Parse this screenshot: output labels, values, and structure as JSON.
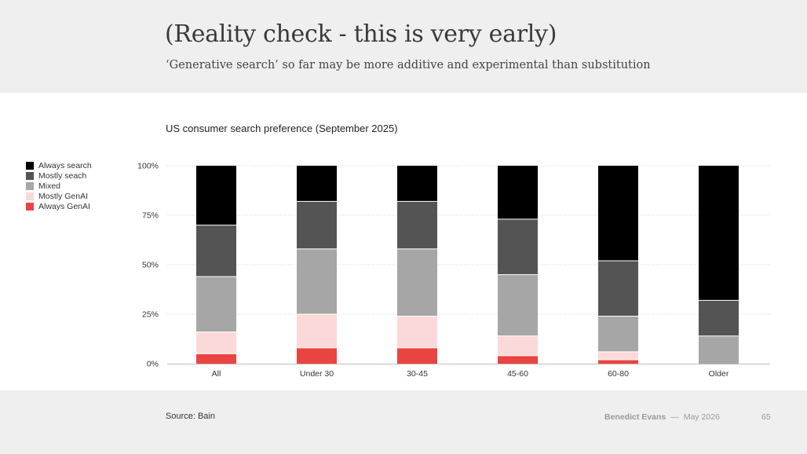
{
  "header": {
    "title": "(Reality check - this is very early)",
    "subtitle": "‘Generative search’ so far may be more additive and experimental than substitution"
  },
  "footer": {
    "source": "Source: Bain",
    "author": "Benedict Evans",
    "separator": "—",
    "date": "May 2026",
    "page": "65"
  },
  "chart_data": {
    "type": "bar",
    "stacked": true,
    "title": "US consumer search preference (September 2025)",
    "categories": [
      "All",
      "Under 30",
      "30-45",
      "45-60",
      "60-80",
      "Older"
    ],
    "ylim": [
      0,
      100
    ],
    "yticks": [
      "0%",
      "25%",
      "50%",
      "75%",
      "100%"
    ],
    "ytick_values": [
      0,
      25,
      50,
      75,
      100
    ],
    "grid": true,
    "legend_position": "left",
    "series": [
      {
        "name": "Always GenAI",
        "color": "#ea4440",
        "values": [
          5,
          8,
          8,
          4,
          2,
          0
        ]
      },
      {
        "name": "Mostly GenAI",
        "color": "#fcd9d9",
        "values": [
          11,
          17,
          16,
          10,
          4,
          0
        ]
      },
      {
        "name": "Mixed",
        "color": "#a6a6a6",
        "values": [
          28,
          33,
          34,
          31,
          18,
          14
        ]
      },
      {
        "name": "Mostly seach",
        "color": "#545454",
        "values": [
          26,
          24,
          24,
          28,
          28,
          18
        ]
      },
      {
        "name": "Always search",
        "color": "#000000",
        "values": [
          30,
          18,
          18,
          27,
          48,
          68
        ]
      }
    ]
  }
}
